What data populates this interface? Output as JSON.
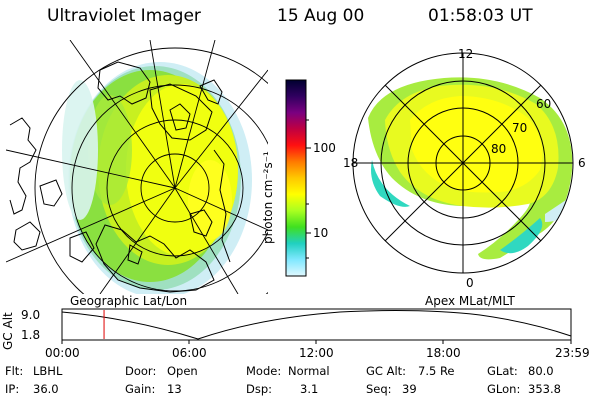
{
  "header": {
    "instrument": "Ultraviolet Imager",
    "date": "15 Aug 00",
    "time": "01:58:03 UT"
  },
  "colorbar": {
    "label": "photon cm⁻²s⁻¹",
    "ticks": [
      "100",
      "10"
    ],
    "colors": [
      "#000030",
      "#300060",
      "#7a0080",
      "#c00040",
      "#ff1010",
      "#ff7a00",
      "#ffc800",
      "#ffff00",
      "#aaff20",
      "#40e020",
      "#20d0c0",
      "#80e8ff",
      "#e0f8ff"
    ]
  },
  "left_map": {
    "label": "Geographic Lat/Lon"
  },
  "right_map": {
    "label": "Apex MLat/MLT",
    "mlt_labels": {
      "top": "12",
      "left": "18",
      "right": "6",
      "bottom": "0"
    },
    "mlat_labels": [
      "60",
      "70",
      "80"
    ]
  },
  "altitude_plot": {
    "ylabel": "GC Alt",
    "yticks": [
      "9.0",
      "1.8"
    ],
    "xticks": [
      "00:00",
      "06:00",
      "12:00",
      "18:00",
      "23:59"
    ],
    "current_time_fraction": 0.0826
  },
  "info": {
    "flt_label": "Flt:",
    "flt_value": "LBHL",
    "ip_label": "IP:",
    "ip_value": "36.0",
    "door_label": "Door:",
    "door_value": "Open",
    "gain_label": "Gain:",
    "gain_value": "13",
    "mode_label": "Mode:",
    "mode_value": "Normal",
    "dsp_label": "Dsp:",
    "dsp_value": "3.1",
    "gcalt_label": "GC Alt:",
    "gcalt_value": "7.5 Re",
    "seq_label": "Seq:",
    "seq_value": "39",
    "glat_label": "GLat:",
    "glat_value": "80.0",
    "glon_label": "GLon:",
    "glon_value": "353.8"
  }
}
